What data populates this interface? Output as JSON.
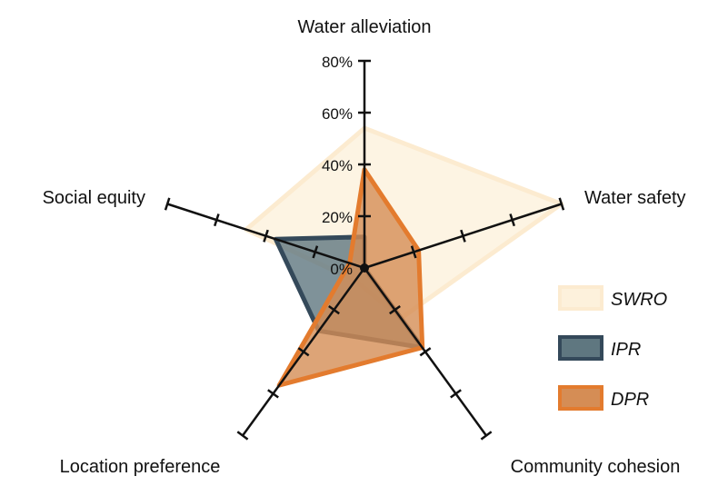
{
  "chart_data": {
    "type": "radar",
    "axes": [
      "Water alleviation",
      "Water safety",
      "Community cohesion",
      "Location preference",
      "Social equity"
    ],
    "tick_labels": [
      "0%",
      "20%",
      "40%",
      "60%",
      "80%"
    ],
    "range": [
      0,
      80
    ],
    "grid": false,
    "legend_position": "right",
    "series": [
      {
        "name": "SWRO",
        "values": [
          54,
          80,
          24,
          6,
          48
        ],
        "fill": "#FDF1DC",
        "stroke": "#FCEBD0"
      },
      {
        "name": "IPR",
        "values": [
          12,
          0,
          38,
          30,
          36
        ],
        "fill": "#5F7780",
        "stroke": "#34495A"
      },
      {
        "name": "DPR",
        "values": [
          38,
          22,
          38,
          56,
          6
        ],
        "fill": "#D58D55",
        "stroke": "#E37B2E"
      }
    ]
  }
}
